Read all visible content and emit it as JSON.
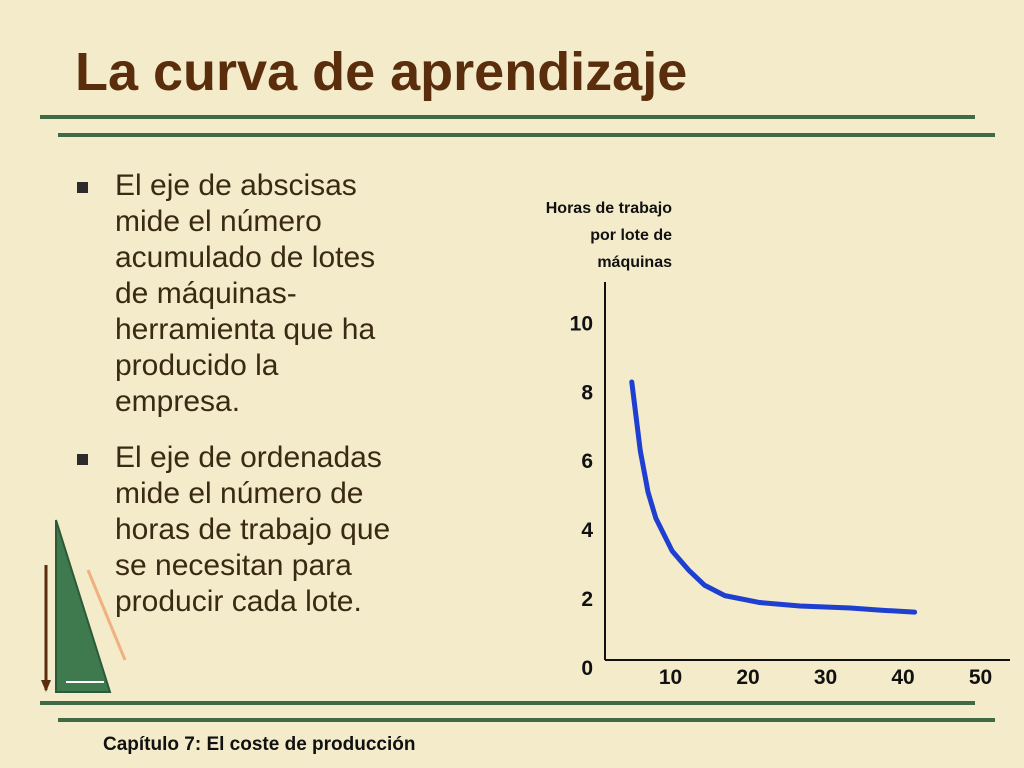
{
  "title": "La curva de aprendizaje",
  "bullets": [
    "El eje de abscisas mide el número acumulado de lotes de máquinas-herramienta que ha producido la empresa.",
    "El eje de ordenadas mide el número de horas de trabajo que se necesitan para producir cada lote."
  ],
  "footer": "Capítulo 7: El coste de producción",
  "chart_data": {
    "type": "line",
    "ylabel": [
      "Horas de trabajo",
      "por lote de",
      "máquinas"
    ],
    "x": [
      4.1,
      5.2,
      6.2,
      7.2,
      9.3,
      11.4,
      13.5,
      16.1,
      20.6,
      25.8,
      32.3,
      36.1,
      40.6
    ],
    "series": [
      {
        "color": "#1f3fd0",
        "values": [
          8.3,
          6.3,
          5.1,
          4.35,
          3.4,
          2.85,
          2.4,
          2.1,
          1.9,
          1.8,
          1.74,
          1.68,
          1.62
        ]
      }
    ],
    "xlim": [
      0,
      52
    ],
    "xticks": [
      10,
      20,
      30,
      40,
      50
    ],
    "ylim": [
      0,
      11.2
    ],
    "yticks": [
      0,
      2,
      4,
      6,
      8,
      10
    ]
  }
}
